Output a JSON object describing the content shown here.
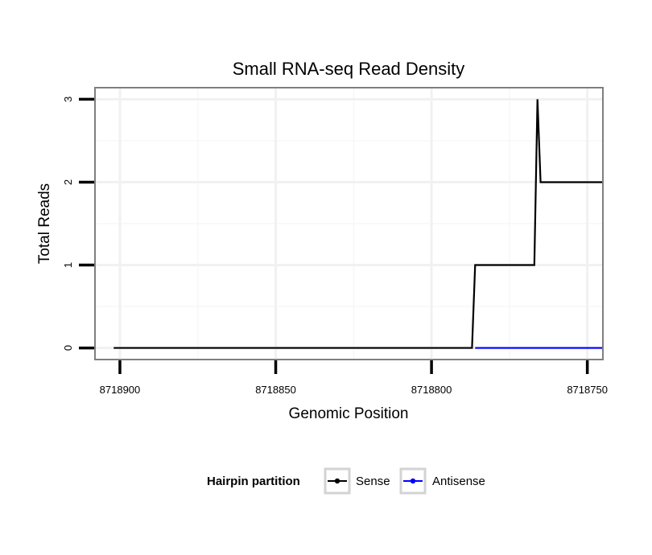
{
  "chart_data": {
    "type": "line",
    "title": "Small RNA-seq Read Density",
    "xlabel": "Genomic Position",
    "ylabel": "Total Reads",
    "x_reversed": true,
    "xlim": [
      8718908,
      8718745
    ],
    "ylim": [
      -0.14,
      3.14
    ],
    "x_ticks": [
      8718900,
      8718850,
      8718800,
      8718750
    ],
    "x_tick_labels": [
      "8718900",
      "8718850",
      "8718800",
      "8718750"
    ],
    "y_ticks": [
      0,
      1,
      2,
      3
    ],
    "y_tick_labels": [
      "0",
      "1",
      "2",
      "3"
    ],
    "grid": true,
    "legend": {
      "title": "Hairpin partition",
      "position": "bottom",
      "entries": [
        {
          "name": "Sense",
          "color": "#000000"
        },
        {
          "name": "Antisense",
          "color": "#0000ff"
        }
      ]
    },
    "series": [
      {
        "name": "Sense",
        "color": "#000000",
        "x": [
          8718902,
          8718787,
          8718786,
          8718767,
          8718766,
          8718765,
          8718745
        ],
        "y": [
          0,
          0,
          1,
          1,
          3,
          2,
          2
        ]
      },
      {
        "name": "Antisense",
        "color": "#0000ff",
        "x": [
          8718786,
          8718745
        ],
        "y": [
          0,
          0
        ]
      }
    ]
  }
}
